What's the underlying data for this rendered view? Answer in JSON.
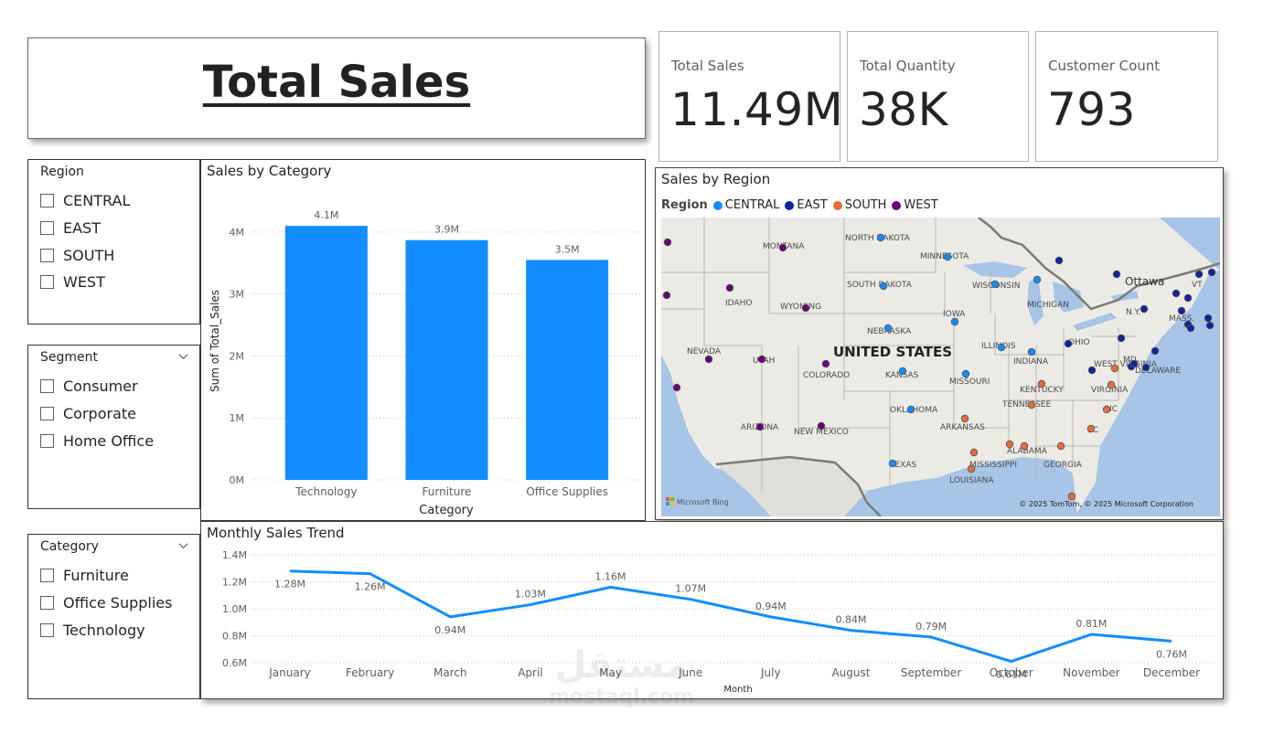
{
  "title": "Total Sales",
  "kpis": [
    {
      "label": "Total Sales",
      "value": "11.49M"
    },
    {
      "label": "Total Quantity",
      "value": "38K"
    },
    {
      "label": "Customer Count",
      "value": "793"
    }
  ],
  "slicers": {
    "region": {
      "title": "Region",
      "items": [
        "CENTRAL",
        "EAST",
        "SOUTH",
        "WEST"
      ]
    },
    "segment": {
      "title": "Segment",
      "items": [
        "Consumer",
        "Corporate",
        "Home Office"
      ]
    },
    "category": {
      "title": "Category",
      "items": [
        "Furniture",
        "Office Supplies",
        "Technology"
      ]
    }
  },
  "map": {
    "title": "Sales by Region",
    "legend_title": "Region",
    "legend": [
      {
        "name": "CENTRAL",
        "color": "#118dff"
      },
      {
        "name": "EAST",
        "color": "#12239e"
      },
      {
        "name": "SOUTH",
        "color": "#e66c37"
      },
      {
        "name": "WEST",
        "color": "#6b007b"
      }
    ],
    "country_label": "UNITED STATES",
    "state_labels": [
      "NORTH DAKOTA",
      "MINNESOTA",
      "MONTANA",
      "SOUTH DAKOTA",
      "WISCONSIN",
      "MICHIGAN",
      "Ottawa",
      "VT",
      "N.Y.",
      "MASS.",
      "IDAHO",
      "WYOMING",
      "IOWA",
      "NEBRASKA",
      "NEVADA",
      "UTAH",
      "ILLINOIS",
      "INDIANA",
      "OHIO",
      "MD.",
      "DELAWARE",
      "WEST VIRGINIA",
      "COLORADO",
      "KANSAS",
      "MISSOURI",
      "KENTUCKY",
      "VIRGINIA",
      "TENNESSEE",
      "NC",
      "OKLAHOMA",
      "ARKANSAS",
      "SC",
      "ARIZONA",
      "NEW MEXICO",
      "ALABAMA",
      "GEORGIA",
      "MISSISSIPPI",
      "TEXAS",
      "LOUISIANA"
    ],
    "attribution_left": "Microsoft Bing",
    "attribution_right": "© 2025 TomTom, © 2025 Microsoft Corporation"
  },
  "watermark": {
    "arabic": "مستقل",
    "latin": "mostaql.com"
  },
  "chart_data": [
    {
      "type": "bar",
      "title": "Sales by Category",
      "xlabel": "Category",
      "ylabel": "Sum of Total_Sales",
      "categories": [
        "Technology",
        "Furniture",
        "Office Supplies"
      ],
      "values": [
        4.1,
        3.87,
        3.55
      ],
      "data_labels": [
        "4.1M",
        "3.9M",
        "3.5M"
      ],
      "yticks": [
        "0M",
        "1M",
        "2M",
        "3M",
        "4M"
      ],
      "ylim": [
        0,
        4.5
      ],
      "unit": "M",
      "color": "#118dff",
      "grid": true
    },
    {
      "type": "line",
      "title": "Monthly Sales Trend",
      "xlabel": "Month",
      "ylabel": "",
      "categories": [
        "January",
        "February",
        "March",
        "April",
        "May",
        "June",
        "July",
        "August",
        "September",
        "October",
        "November",
        "December"
      ],
      "values": [
        1.28,
        1.26,
        0.94,
        1.03,
        1.16,
        1.07,
        0.94,
        0.84,
        0.79,
        0.61,
        0.81,
        0.76
      ],
      "data_labels": [
        "1.28M",
        "1.26M",
        "0.94M",
        "1.03M",
        "1.16M",
        "1.07M",
        "0.94M",
        "0.84M",
        "0.79M",
        "0.61M",
        "0.81M",
        "0.76M"
      ],
      "yticks": [
        "0.6M",
        "0.8M",
        "1.0M",
        "1.2M",
        "1.4M"
      ],
      "ylim": [
        0.6,
        1.4
      ],
      "unit": "M",
      "color": "#118dff",
      "grid": true
    }
  ]
}
